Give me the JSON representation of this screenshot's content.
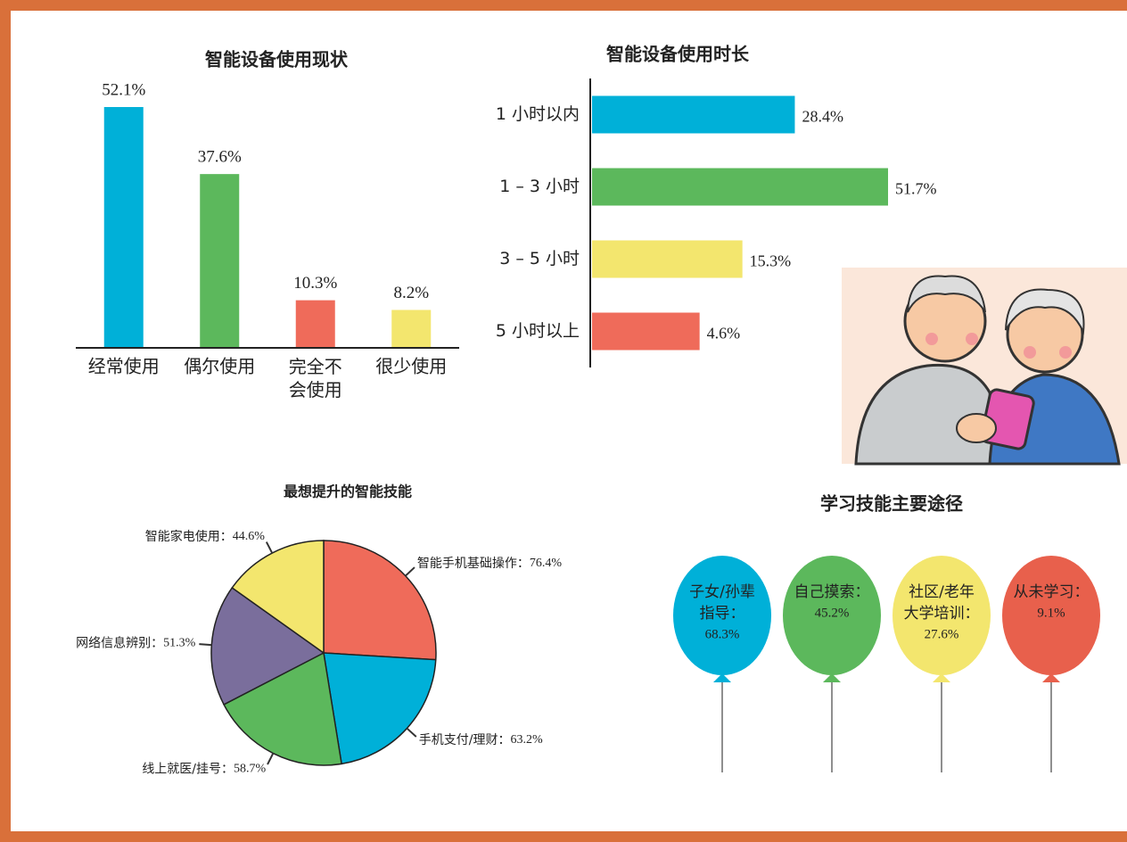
{
  "chart_data": [
    {
      "type": "bar",
      "title": "智能设备使用现状",
      "categories": [
        "经常使用",
        "偶尔使用",
        "完全不会使用",
        "很少使用"
      ],
      "values": [
        52.1,
        37.6,
        10.3,
        8.2
      ],
      "value_labels": [
        "52.1%",
        "37.6%",
        "10.3%",
        "8.2%"
      ],
      "colors": [
        "#00b0d8",
        "#5cb85c",
        "#ef6b5a",
        "#f3e66e"
      ]
    },
    {
      "type": "bar",
      "orientation": "horizontal",
      "title": "智能设备使用时长",
      "categories": [
        "1 小时以内",
        "1 – 3 小时",
        "3 – 5 小时",
        "5 小时以上"
      ],
      "values": [
        28.4,
        51.7,
        15.3,
        4.6
      ],
      "value_labels": [
        "28.4%",
        "51.7%",
        "15.3%",
        "4.6%"
      ],
      "colors": [
        "#00b0d8",
        "#5cb85c",
        "#f3e66e",
        "#ef6b5a"
      ]
    },
    {
      "type": "pie",
      "title": "最想提升的智能技能",
      "categories": [
        "智能手机基础操作：",
        "手机支付/理财：",
        "线上就医/挂号：",
        "网络信息辨别：",
        "智能家电使用："
      ],
      "values": [
        76.4,
        63.2,
        58.7,
        51.3,
        44.6
      ],
      "value_labels": [
        "76.4%",
        "63.2%",
        "58.7%",
        "51.3%",
        "44.6%"
      ],
      "colors": [
        "#ef6b5a",
        "#00b0d8",
        "#5cb85c",
        "#7a6e9c",
        "#f3e66e"
      ]
    },
    {
      "type": "balloon",
      "title": "学习技能主要途径",
      "categories": [
        "子女/孙辈指导：",
        "自己摸索：",
        "社区/老年大学培训：",
        "从未学习："
      ],
      "values": [
        68.3,
        45.2,
        27.6,
        9.1
      ],
      "value_labels": [
        "68.3%",
        "45.2%",
        "27.6%",
        "9.1%"
      ],
      "colors": [
        "#00b0d8",
        "#5cb85c",
        "#f3e66e",
        "#e8604c"
      ]
    }
  ]
}
